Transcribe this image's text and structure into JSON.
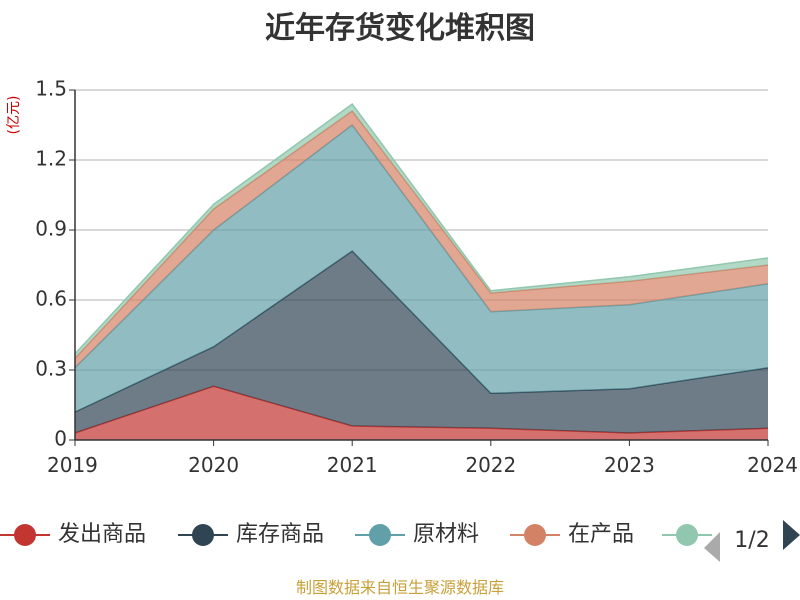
{
  "source_note": "制图数据来自恒生聚源数据库",
  "legend_page": "1/2",
  "chart_data": {
    "type": "area",
    "stacked": true,
    "title": "近年存货变化堆积图",
    "ylabel": "(亿元)",
    "x": [
      "2019",
      "2020",
      "2021",
      "2022",
      "2023",
      "2024"
    ],
    "y_ticks": [
      "0",
      "0.3",
      "0.6",
      "0.9",
      "1.2",
      "1.5"
    ],
    "ylim": [
      0,
      1.5
    ],
    "grid": true,
    "legend_position": "bottom",
    "series": [
      {
        "name": "发出商品",
        "color": "#c23531",
        "values": [
          0.03,
          0.23,
          0.06,
          0.05,
          0.03,
          0.05
        ]
      },
      {
        "name": "库存商品",
        "color": "#2f4554",
        "values": [
          0.09,
          0.17,
          0.75,
          0.15,
          0.19,
          0.26
        ]
      },
      {
        "name": "原材料",
        "color": "#61a0a8",
        "values": [
          0.19,
          0.5,
          0.54,
          0.35,
          0.36,
          0.36
        ]
      },
      {
        "name": "在产品",
        "color": "#d48265",
        "values": [
          0.04,
          0.09,
          0.06,
          0.08,
          0.1,
          0.08
        ]
      },
      {
        "name": "",
        "color": "#91c7ae",
        "values": [
          0.02,
          0.02,
          0.03,
          0.01,
          0.02,
          0.03
        ]
      }
    ]
  }
}
